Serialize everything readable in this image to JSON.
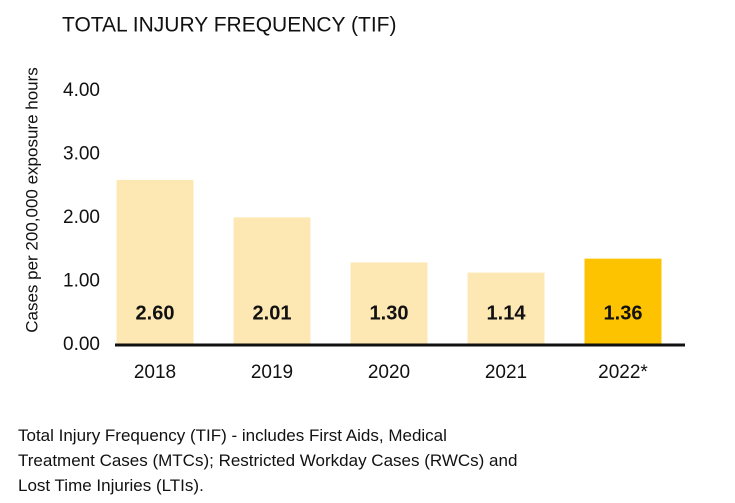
{
  "chart_data": {
    "type": "bar",
    "title": "TOTAL INJURY FREQUENCY (TIF)",
    "y_label": "Cases per 200,000 exposure hours",
    "categories": [
      "2018",
      "2019",
      "2020",
      "2021",
      "2022*"
    ],
    "values": [
      2.6,
      2.01,
      1.3,
      1.14,
      1.36
    ],
    "value_labels": [
      "2.60",
      "2.01",
      "1.30",
      "1.14",
      "1.36"
    ],
    "colors": [
      "#fde8b4",
      "#fde8b4",
      "#fde8b4",
      "#fde8b4",
      "#fdc300"
    ],
    "ylim": [
      0,
      4
    ],
    "yticks": [
      {
        "value": 0,
        "label": "0.00"
      },
      {
        "value": 1,
        "label": "1.00"
      },
      {
        "value": 2,
        "label": "2.00"
      },
      {
        "value": 3,
        "label": "3.00"
      },
      {
        "value": 4,
        "label": "4.00"
      }
    ],
    "grid": false
  },
  "footnote": [
    "Total Injury Frequency (TIF) - includes First Aids, Medical",
    "Treatment Cases (MTCs); Restricted Workday Cases (RWCs) and",
    "Lost Time Injuries (LTIs)."
  ]
}
